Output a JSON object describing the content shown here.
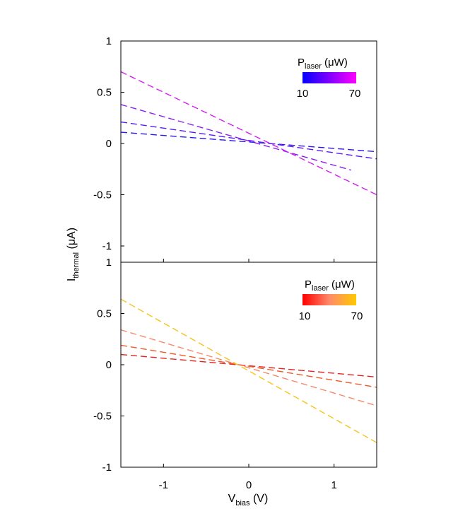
{
  "chart_data": [
    {
      "type": "line",
      "panel": "top",
      "ylim": [
        -1,
        1
      ],
      "xlim": [
        -1.5,
        1.5
      ],
      "yticks": [
        1,
        0.5,
        0,
        -0.5,
        -1
      ],
      "yticklabels": [
        "1",
        "0.5",
        "0",
        "-0.5",
        "-1"
      ],
      "xticks": [
        -1,
        0,
        1
      ],
      "line_style": "dashed",
      "colorbar": {
        "label_main": "P",
        "label_sub": "laser",
        "label_unit": " (μW)",
        "min_label": "10",
        "max_label": "70",
        "color_start": "#0000ff",
        "color_end": "#ff00ff",
        "placement": "top-right"
      },
      "series": [
        {
          "color": "#2a14f5",
          "x": [
            -1.5,
            1.5
          ],
          "y": [
            0.11,
            -0.08
          ]
        },
        {
          "color": "#5a1cf0",
          "x": [
            -1.5,
            1.5
          ],
          "y": [
            0.21,
            -0.15
          ]
        },
        {
          "color": "#8a1ff0",
          "x": [
            -1.5,
            1.2
          ],
          "y": [
            0.38,
            -0.26
          ]
        },
        {
          "color": "#d21ef0",
          "x": [
            -1.5,
            1.5
          ],
          "y": [
            0.7,
            -0.5
          ]
        }
      ]
    },
    {
      "type": "line",
      "panel": "bottom",
      "ylim": [
        -1,
        1
      ],
      "xlim": [
        -1.5,
        1.5
      ],
      "yticks": [
        1,
        0.5,
        0,
        -0.5,
        -1
      ],
      "yticklabels": [
        "1",
        "0.5",
        "0",
        "-0.5",
        "-1"
      ],
      "xticks": [
        -1,
        0,
        1
      ],
      "xticklabels": [
        "-1",
        "0",
        "1"
      ],
      "xlabel_main": "V",
      "xlabel_sub": "bias",
      "xlabel_unit": " (V)",
      "line_style": "dashed",
      "colorbar": {
        "label_main": "P",
        "label_sub": "laser",
        "label_unit": " (μW)",
        "min_label": "10",
        "max_label": "70",
        "color_start": "#ff0000",
        "color_mid": "#ff8a6a",
        "color_end": "#ffc800",
        "placement": "top-right"
      },
      "series": [
        {
          "color": "#e8231e",
          "x": [
            -1.5,
            1.5
          ],
          "y": [
            0.1,
            -0.12
          ]
        },
        {
          "color": "#f05a28",
          "x": [
            -1.5,
            1.5
          ],
          "y": [
            0.19,
            -0.22
          ]
        },
        {
          "color": "#f5896a",
          "x": [
            -1.5,
            1.5
          ],
          "y": [
            0.34,
            -0.4
          ]
        },
        {
          "color": "#f5c31e",
          "x": [
            -1.5,
            1.5
          ],
          "y": [
            0.64,
            -0.76
          ]
        }
      ]
    }
  ],
  "shared": {
    "ylabel_main": "I",
    "ylabel_sub": "thermal",
    "ylabel_unit": " (μA)"
  }
}
